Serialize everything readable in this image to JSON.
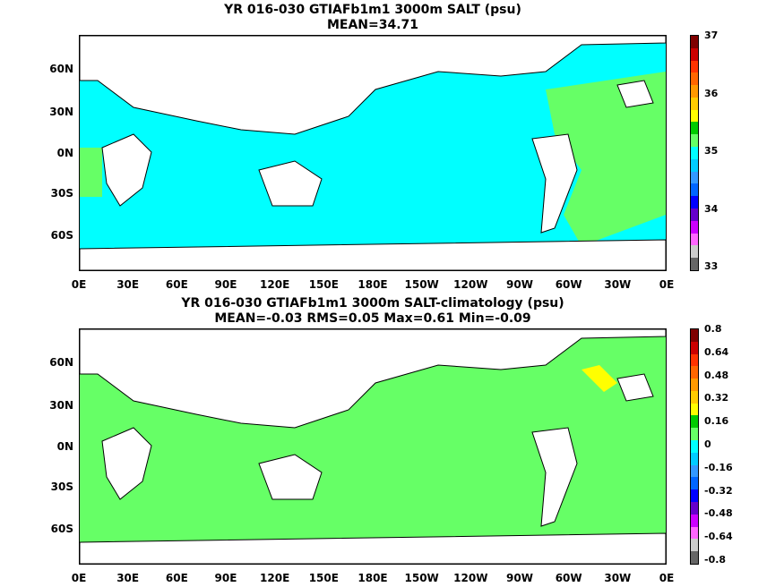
{
  "top": {
    "title": "YR 016-030 GTIAFb1m1 3000m SALT (psu)",
    "subtitle": "MEAN=34.71",
    "colorbar_labels": [
      "37",
      "36",
      "35",
      "34",
      "33"
    ],
    "colors": [
      "#7f0000",
      "#cc0000",
      "#ff3300",
      "#ff6600",
      "#ff9900",
      "#ffcc00",
      "#ffff00",
      "#00cc00",
      "#66ff66",
      "#00ffff",
      "#00ccff",
      "#3399ff",
      "#0066ff",
      "#0000ff",
      "#6600cc",
      "#cc00ff",
      "#ff66ff",
      "#cccccc",
      "#666666"
    ]
  },
  "bottom": {
    "title": "YR 016-030 GTIAFb1m1 3000m SALT-climatology (psu)",
    "subtitle": "MEAN=-0.03   RMS=0.05   Max=0.61   Min=-0.09",
    "colorbar_labels": [
      "0.8",
      "0.64",
      "0.48",
      "0.32",
      "0.16",
      "0",
      "-0.16",
      "-0.32",
      "-0.48",
      "-0.64",
      "-0.8"
    ],
    "colors": [
      "#7f0000",
      "#cc0000",
      "#ff3300",
      "#ff6600",
      "#ff9900",
      "#ffcc00",
      "#ffff00",
      "#00cc00",
      "#66ff66",
      "#00ffff",
      "#00ccff",
      "#3399ff",
      "#0066ff",
      "#0000ff",
      "#6600cc",
      "#cc00ff",
      "#ff66ff",
      "#cccccc",
      "#666666"
    ]
  },
  "axes": {
    "lat_labels": [
      "60N",
      "30N",
      "0N",
      "30S",
      "60S"
    ],
    "lon_labels": [
      "0E",
      "30E",
      "60E",
      "90E",
      "120E",
      "150E",
      "180E",
      "150W",
      "120W",
      "90W",
      "60W",
      "30W",
      "0E"
    ]
  },
  "fill_colors": {
    "ocean_top": "#00ffff",
    "ocean_green": "#66ff66",
    "ocean_bottom": "#66ff66",
    "accent": "#ffff00"
  }
}
